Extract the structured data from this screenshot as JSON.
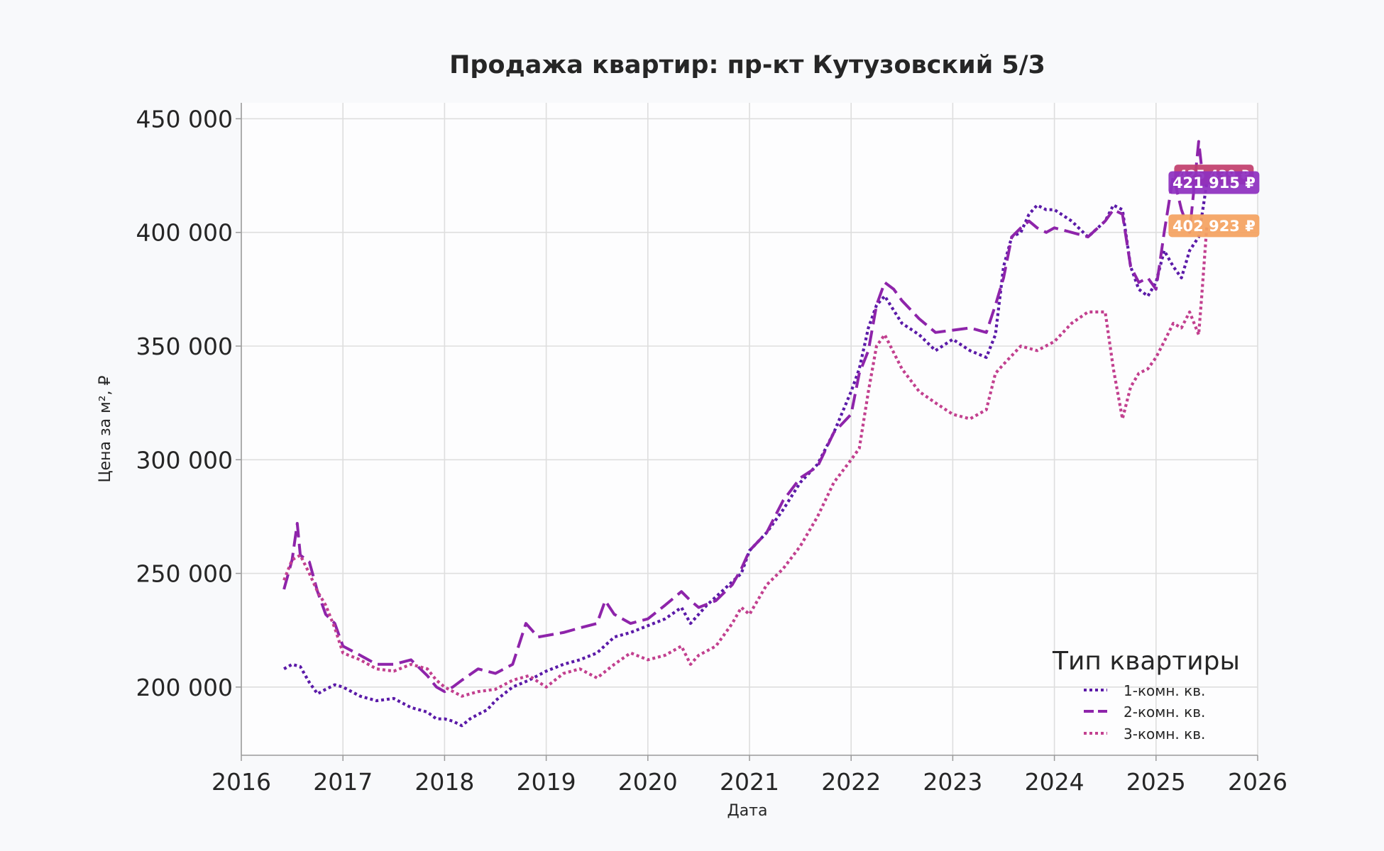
{
  "chart_data": {
    "type": "line",
    "title": "Продажа квартир: пр-кт Кутузовский 5/3",
    "xlabel": "Дата",
    "ylabel": "Цена за м², ₽",
    "x_ticks": [
      "2016",
      "2017",
      "2018",
      "2019",
      "2020",
      "2021",
      "2022",
      "2023",
      "2024",
      "2025",
      "2026"
    ],
    "y_ticks": [
      "200 000",
      "250 000",
      "300 000",
      "350 000",
      "400 000",
      "450 000"
    ],
    "xlim": [
      2016.0,
      2026.0
    ],
    "ylim": [
      170000,
      457000
    ],
    "grid": true,
    "legend": {
      "title": "Тип квартиры",
      "position": "bottom-right",
      "labels": [
        "1-комн. кв.",
        "2-комн. кв.",
        "3-комн. кв."
      ]
    },
    "series": [
      {
        "name": "1-комн. кв.",
        "color": "#5b1aa8",
        "dash": "dotted",
        "x": [
          2016.42,
          2016.5,
          2016.58,
          2016.67,
          2016.75,
          2016.83,
          2016.92,
          2017.0,
          2017.17,
          2017.33,
          2017.5,
          2017.67,
          2017.83,
          2017.92,
          2018.0,
          2018.08,
          2018.17,
          2018.25,
          2018.33,
          2018.42,
          2018.5,
          2018.67,
          2018.83,
          2019.0,
          2019.17,
          2019.33,
          2019.5,
          2019.67,
          2019.83,
          2020.0,
          2020.17,
          2020.33,
          2020.42,
          2020.58,
          2020.75,
          2020.92,
          2021.0,
          2021.17,
          2021.33,
          2021.5,
          2021.67,
          2021.83,
          2022.0,
          2022.08,
          2022.17,
          2022.25,
          2022.33,
          2022.5,
          2022.67,
          2022.83,
          2023.0,
          2023.17,
          2023.33,
          2023.42,
          2023.5,
          2023.58,
          2023.67,
          2023.75,
          2023.83,
          2023.92,
          2024.0,
          2024.17,
          2024.33,
          2024.5,
          2024.58,
          2024.67,
          2024.75,
          2024.83,
          2024.92,
          2025.0,
          2025.08,
          2025.17,
          2025.25,
          2025.33,
          2025.42,
          2025.5
        ],
        "y": [
          208000,
          210000,
          209000,
          202000,
          197000,
          199000,
          201000,
          200000,
          196000,
          194000,
          195000,
          191000,
          189000,
          186000,
          186000,
          185000,
          183000,
          186000,
          188000,
          190000,
          194000,
          200000,
          203000,
          207000,
          210000,
          212000,
          215000,
          222000,
          224000,
          227000,
          230000,
          235000,
          228000,
          236000,
          243000,
          250000,
          260000,
          268000,
          278000,
          290000,
          298000,
          312000,
          330000,
          340000,
          358000,
          368000,
          372000,
          360000,
          355000,
          348000,
          353000,
          348000,
          345000,
          355000,
          385000,
          398000,
          400000,
          408000,
          412000,
          410000,
          410000,
          405000,
          398000,
          405000,
          412000,
          410000,
          385000,
          375000,
          372000,
          378000,
          392000,
          385000,
          380000,
          392000,
          398000,
          421915
        ]
      },
      {
        "name": "2-комн. кв.",
        "color": "#8e24aa",
        "dash": "dashed",
        "x": [
          2016.42,
          2016.5,
          2016.55,
          2016.58,
          2016.67,
          2016.75,
          2016.83,
          2016.92,
          2017.0,
          2017.17,
          2017.33,
          2017.5,
          2017.67,
          2017.83,
          2017.92,
          2018.0,
          2018.08,
          2018.17,
          2018.33,
          2018.5,
          2018.67,
          2018.8,
          2018.92,
          2019.17,
          2019.33,
          2019.5,
          2019.58,
          2019.67,
          2019.83,
          2020.0,
          2020.17,
          2020.33,
          2020.42,
          2020.5,
          2020.67,
          2020.83,
          2020.92,
          2021.0,
          2021.17,
          2021.33,
          2021.5,
          2021.67,
          2021.83,
          2022.0,
          2022.08,
          2022.17,
          2022.25,
          2022.33,
          2022.42,
          2022.5,
          2022.67,
          2022.83,
          2023.0,
          2023.17,
          2023.33,
          2023.42,
          2023.5,
          2023.58,
          2023.67,
          2023.75,
          2023.83,
          2023.92,
          2024.0,
          2024.17,
          2024.33,
          2024.5,
          2024.58,
          2024.67,
          2024.75,
          2024.83,
          2024.92,
          2025.0,
          2025.08,
          2025.17,
          2025.25,
          2025.33,
          2025.42,
          2025.47,
          2025.5
        ],
        "y": [
          243000,
          256000,
          272000,
          258000,
          255000,
          242000,
          232000,
          228000,
          218000,
          214000,
          210000,
          210000,
          212000,
          205000,
          200000,
          198000,
          200000,
          203000,
          208000,
          206000,
          210000,
          228000,
          222000,
          224000,
          226000,
          228000,
          238000,
          232000,
          228000,
          230000,
          236000,
          242000,
          238000,
          235000,
          238000,
          245000,
          252000,
          260000,
          268000,
          282000,
          292000,
          297000,
          312000,
          320000,
          338000,
          348000,
          368000,
          378000,
          375000,
          370000,
          362000,
          356000,
          357000,
          358000,
          356000,
          368000,
          380000,
          398000,
          402000,
          405000,
          402000,
          400000,
          402000,
          400000,
          398000,
          405000,
          410000,
          408000,
          385000,
          378000,
          380000,
          375000,
          400000,
          425000,
          410000,
          400000,
          440000,
          420000,
          425439
        ]
      },
      {
        "name": "3-комн. кв.",
        "color": "#c2408f",
        "dash": "dotted",
        "x": [
          2016.42,
          2016.5,
          2016.58,
          2016.67,
          2016.75,
          2016.83,
          2016.92,
          2017.0,
          2017.17,
          2017.33,
          2017.5,
          2017.67,
          2017.83,
          2017.92,
          2018.0,
          2018.17,
          2018.33,
          2018.5,
          2018.67,
          2018.83,
          2019.0,
          2019.17,
          2019.33,
          2019.5,
          2019.67,
          2019.83,
          2020.0,
          2020.17,
          2020.33,
          2020.42,
          2020.5,
          2020.67,
          2020.83,
          2020.92,
          2021.0,
          2021.17,
          2021.33,
          2021.5,
          2021.67,
          2021.83,
          2022.0,
          2022.08,
          2022.17,
          2022.25,
          2022.33,
          2022.5,
          2022.67,
          2022.83,
          2023.0,
          2023.17,
          2023.33,
          2023.42,
          2023.5,
          2023.67,
          2023.83,
          2024.0,
          2024.17,
          2024.33,
          2024.5,
          2024.58,
          2024.67,
          2024.75,
          2024.83,
          2024.92,
          2025.0,
          2025.08,
          2025.17,
          2025.25,
          2025.33,
          2025.42,
          2025.45,
          2025.5
        ],
        "y": [
          247000,
          256000,
          258000,
          250000,
          242000,
          236000,
          226000,
          215000,
          212000,
          208000,
          207000,
          210000,
          208000,
          203000,
          200000,
          196000,
          198000,
          199000,
          203000,
          205000,
          200000,
          206000,
          208000,
          204000,
          210000,
          215000,
          212000,
          214000,
          218000,
          210000,
          214000,
          218000,
          228000,
          235000,
          232000,
          245000,
          252000,
          262000,
          275000,
          290000,
          300000,
          305000,
          330000,
          350000,
          355000,
          340000,
          330000,
          325000,
          320000,
          318000,
          322000,
          338000,
          342000,
          350000,
          348000,
          352000,
          360000,
          365000,
          365000,
          340000,
          318000,
          332000,
          338000,
          340000,
          345000,
          352000,
          360000,
          358000,
          365000,
          355000,
          372000,
          402923
        ]
      }
    ],
    "end_labels": [
      {
        "series": "2-комн. кв.",
        "text": "425 439 ₽",
        "color": "#c2406e"
      },
      {
        "series": "1-комн. кв.",
        "text": "421 915 ₽",
        "color": "#8e30c0"
      },
      {
        "series": "3-комн. кв.",
        "text": "402 923 ₽",
        "color": "#f4a261"
      }
    ]
  }
}
